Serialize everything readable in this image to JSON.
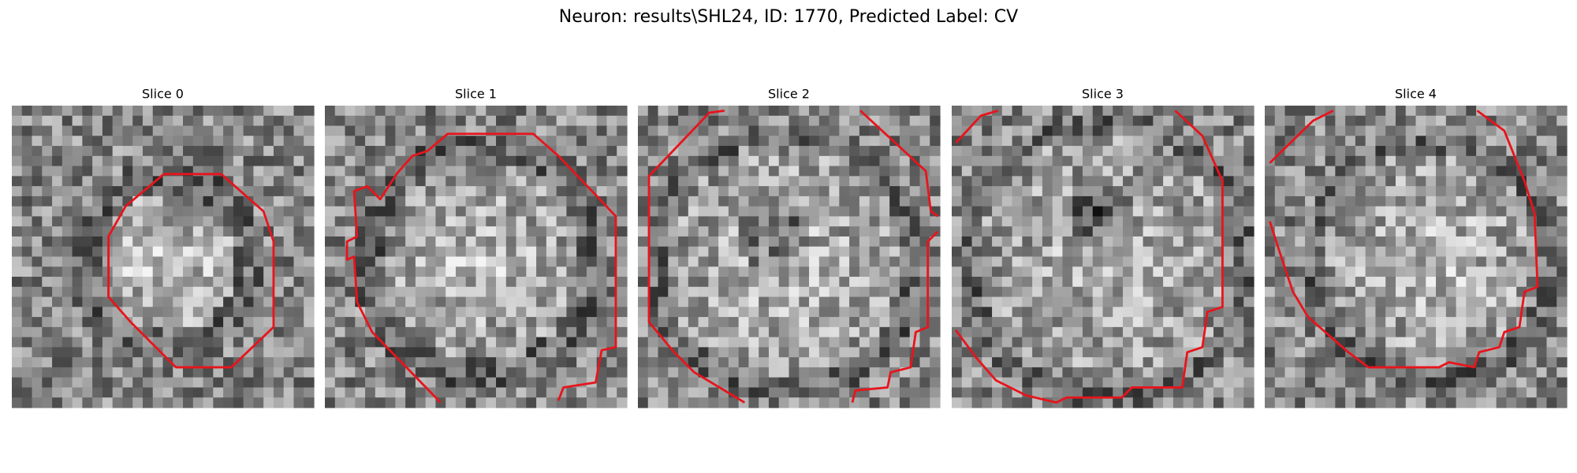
{
  "title": "Neuron: results\\SHL24, ID: 1770, Predicted Label: CV",
  "panels": [
    {
      "label": "Slice 0"
    },
    {
      "label": "Slice 1"
    },
    {
      "label": "Slice 2"
    },
    {
      "label": "Slice 3"
    },
    {
      "label": "Slice 4"
    }
  ]
}
